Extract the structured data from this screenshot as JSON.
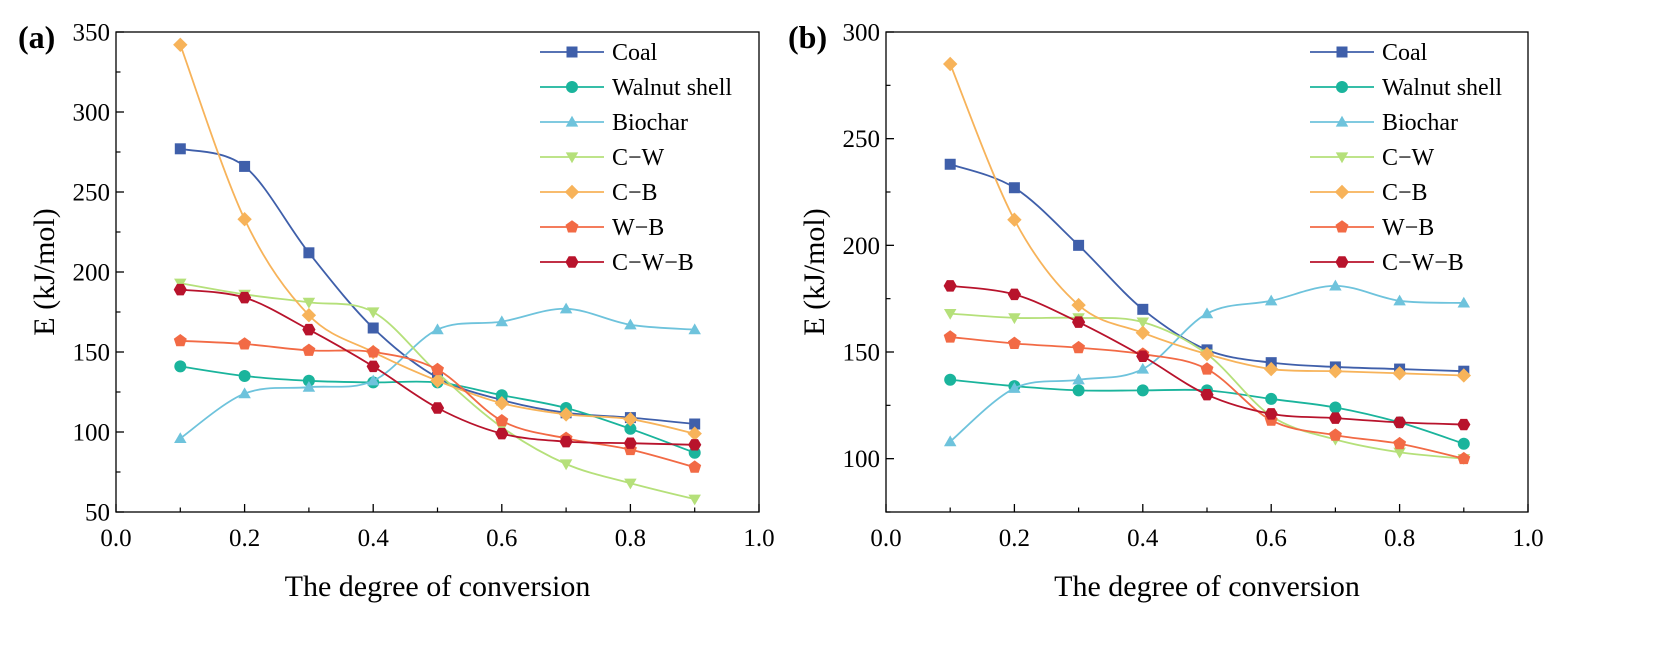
{
  "series_styles": [
    {
      "name": "Coal",
      "color": "#3f5faa",
      "marker": "square"
    },
    {
      "name": "Walnut shell",
      "color": "#1ab49c",
      "marker": "circle"
    },
    {
      "name": "Biochar",
      "color": "#6ec3dc",
      "marker": "triangle-up"
    },
    {
      "name": "C−W",
      "color": "#b5e07a",
      "marker": "triangle-down"
    },
    {
      "name": "C−B",
      "color": "#f7b35a",
      "marker": "diamond"
    },
    {
      "name": "W−B",
      "color": "#f26a45",
      "marker": "pentagon"
    },
    {
      "name": "C−W−B",
      "color": "#b8132c",
      "marker": "hexagon"
    }
  ],
  "chart_data": [
    {
      "type": "line",
      "panel_label": "(a)",
      "xlabel": "The degree of conversion",
      "ylabel": "E (kJ/mol)",
      "xlim": [
        0.0,
        1.0
      ],
      "ylim": [
        50,
        350
      ],
      "xticks": [
        "0.0",
        "0.2",
        "0.4",
        "0.6",
        "0.8",
        "1.0"
      ],
      "yticks": [
        "50",
        "100",
        "150",
        "200",
        "250",
        "300",
        "350"
      ],
      "x": [
        0.1,
        0.2,
        0.3,
        0.4,
        0.5,
        0.6,
        0.7,
        0.8,
        0.9
      ],
      "legend_position": "top-right",
      "series": [
        {
          "name": "Coal",
          "values": [
            277,
            266,
            212,
            165,
            134,
            120,
            112,
            109,
            105
          ]
        },
        {
          "name": "Walnut shell",
          "values": [
            141,
            135,
            132,
            131,
            131,
            123,
            115,
            102,
            87
          ]
        },
        {
          "name": "Biochar",
          "values": [
            96,
            124,
            128,
            132,
            164,
            169,
            177,
            167,
            164
          ]
        },
        {
          "name": "C−W",
          "values": [
            193,
            186,
            181,
            175,
            137,
            103,
            80,
            68,
            58
          ]
        },
        {
          "name": "C−B",
          "values": [
            342,
            233,
            173,
            150,
            132,
            118,
            111,
            108,
            99
          ]
        },
        {
          "name": "W−B",
          "values": [
            157,
            155,
            151,
            150,
            139,
            107,
            96,
            89,
            78
          ]
        },
        {
          "name": "C−W−B",
          "values": [
            189,
            184,
            164,
            141,
            115,
            99,
            94,
            93,
            92
          ]
        }
      ]
    },
    {
      "type": "line",
      "panel_label": "(b)",
      "xlabel": "The degree of conversion",
      "ylabel": "E (kJ/mol)",
      "xlim": [
        0.0,
        1.0
      ],
      "ylim": [
        75,
        300
      ],
      "xticks": [
        "0.0",
        "0.2",
        "0.4",
        "0.6",
        "0.8",
        "1.0"
      ],
      "yticks": [
        "100",
        "150",
        "200",
        "250",
        "300"
      ],
      "x": [
        0.1,
        0.2,
        0.3,
        0.4,
        0.5,
        0.6,
        0.7,
        0.8,
        0.9
      ],
      "legend_position": "top-right",
      "series": [
        {
          "name": "Coal",
          "values": [
            238,
            227,
            200,
            170,
            151,
            145,
            143,
            142,
            141
          ]
        },
        {
          "name": "Walnut shell",
          "values": [
            137,
            134,
            132,
            132,
            132,
            128,
            124,
            117,
            107
          ]
        },
        {
          "name": "Biochar",
          "values": [
            108,
            133,
            137,
            142,
            168,
            174,
            181,
            174,
            173
          ]
        },
        {
          "name": "C−W",
          "values": [
            168,
            166,
            166,
            164,
            149,
            120,
            109,
            103,
            100
          ]
        },
        {
          "name": "C−B",
          "values": [
            285,
            212,
            172,
            159,
            149,
            142,
            141,
            140,
            139
          ]
        },
        {
          "name": "W−B",
          "values": [
            157,
            154,
            152,
            149,
            142,
            118,
            111,
            107,
            100
          ]
        },
        {
          "name": "C−W−B",
          "values": [
            181,
            177,
            164,
            148,
            130,
            121,
            119,
            117,
            116
          ]
        }
      ]
    }
  ]
}
